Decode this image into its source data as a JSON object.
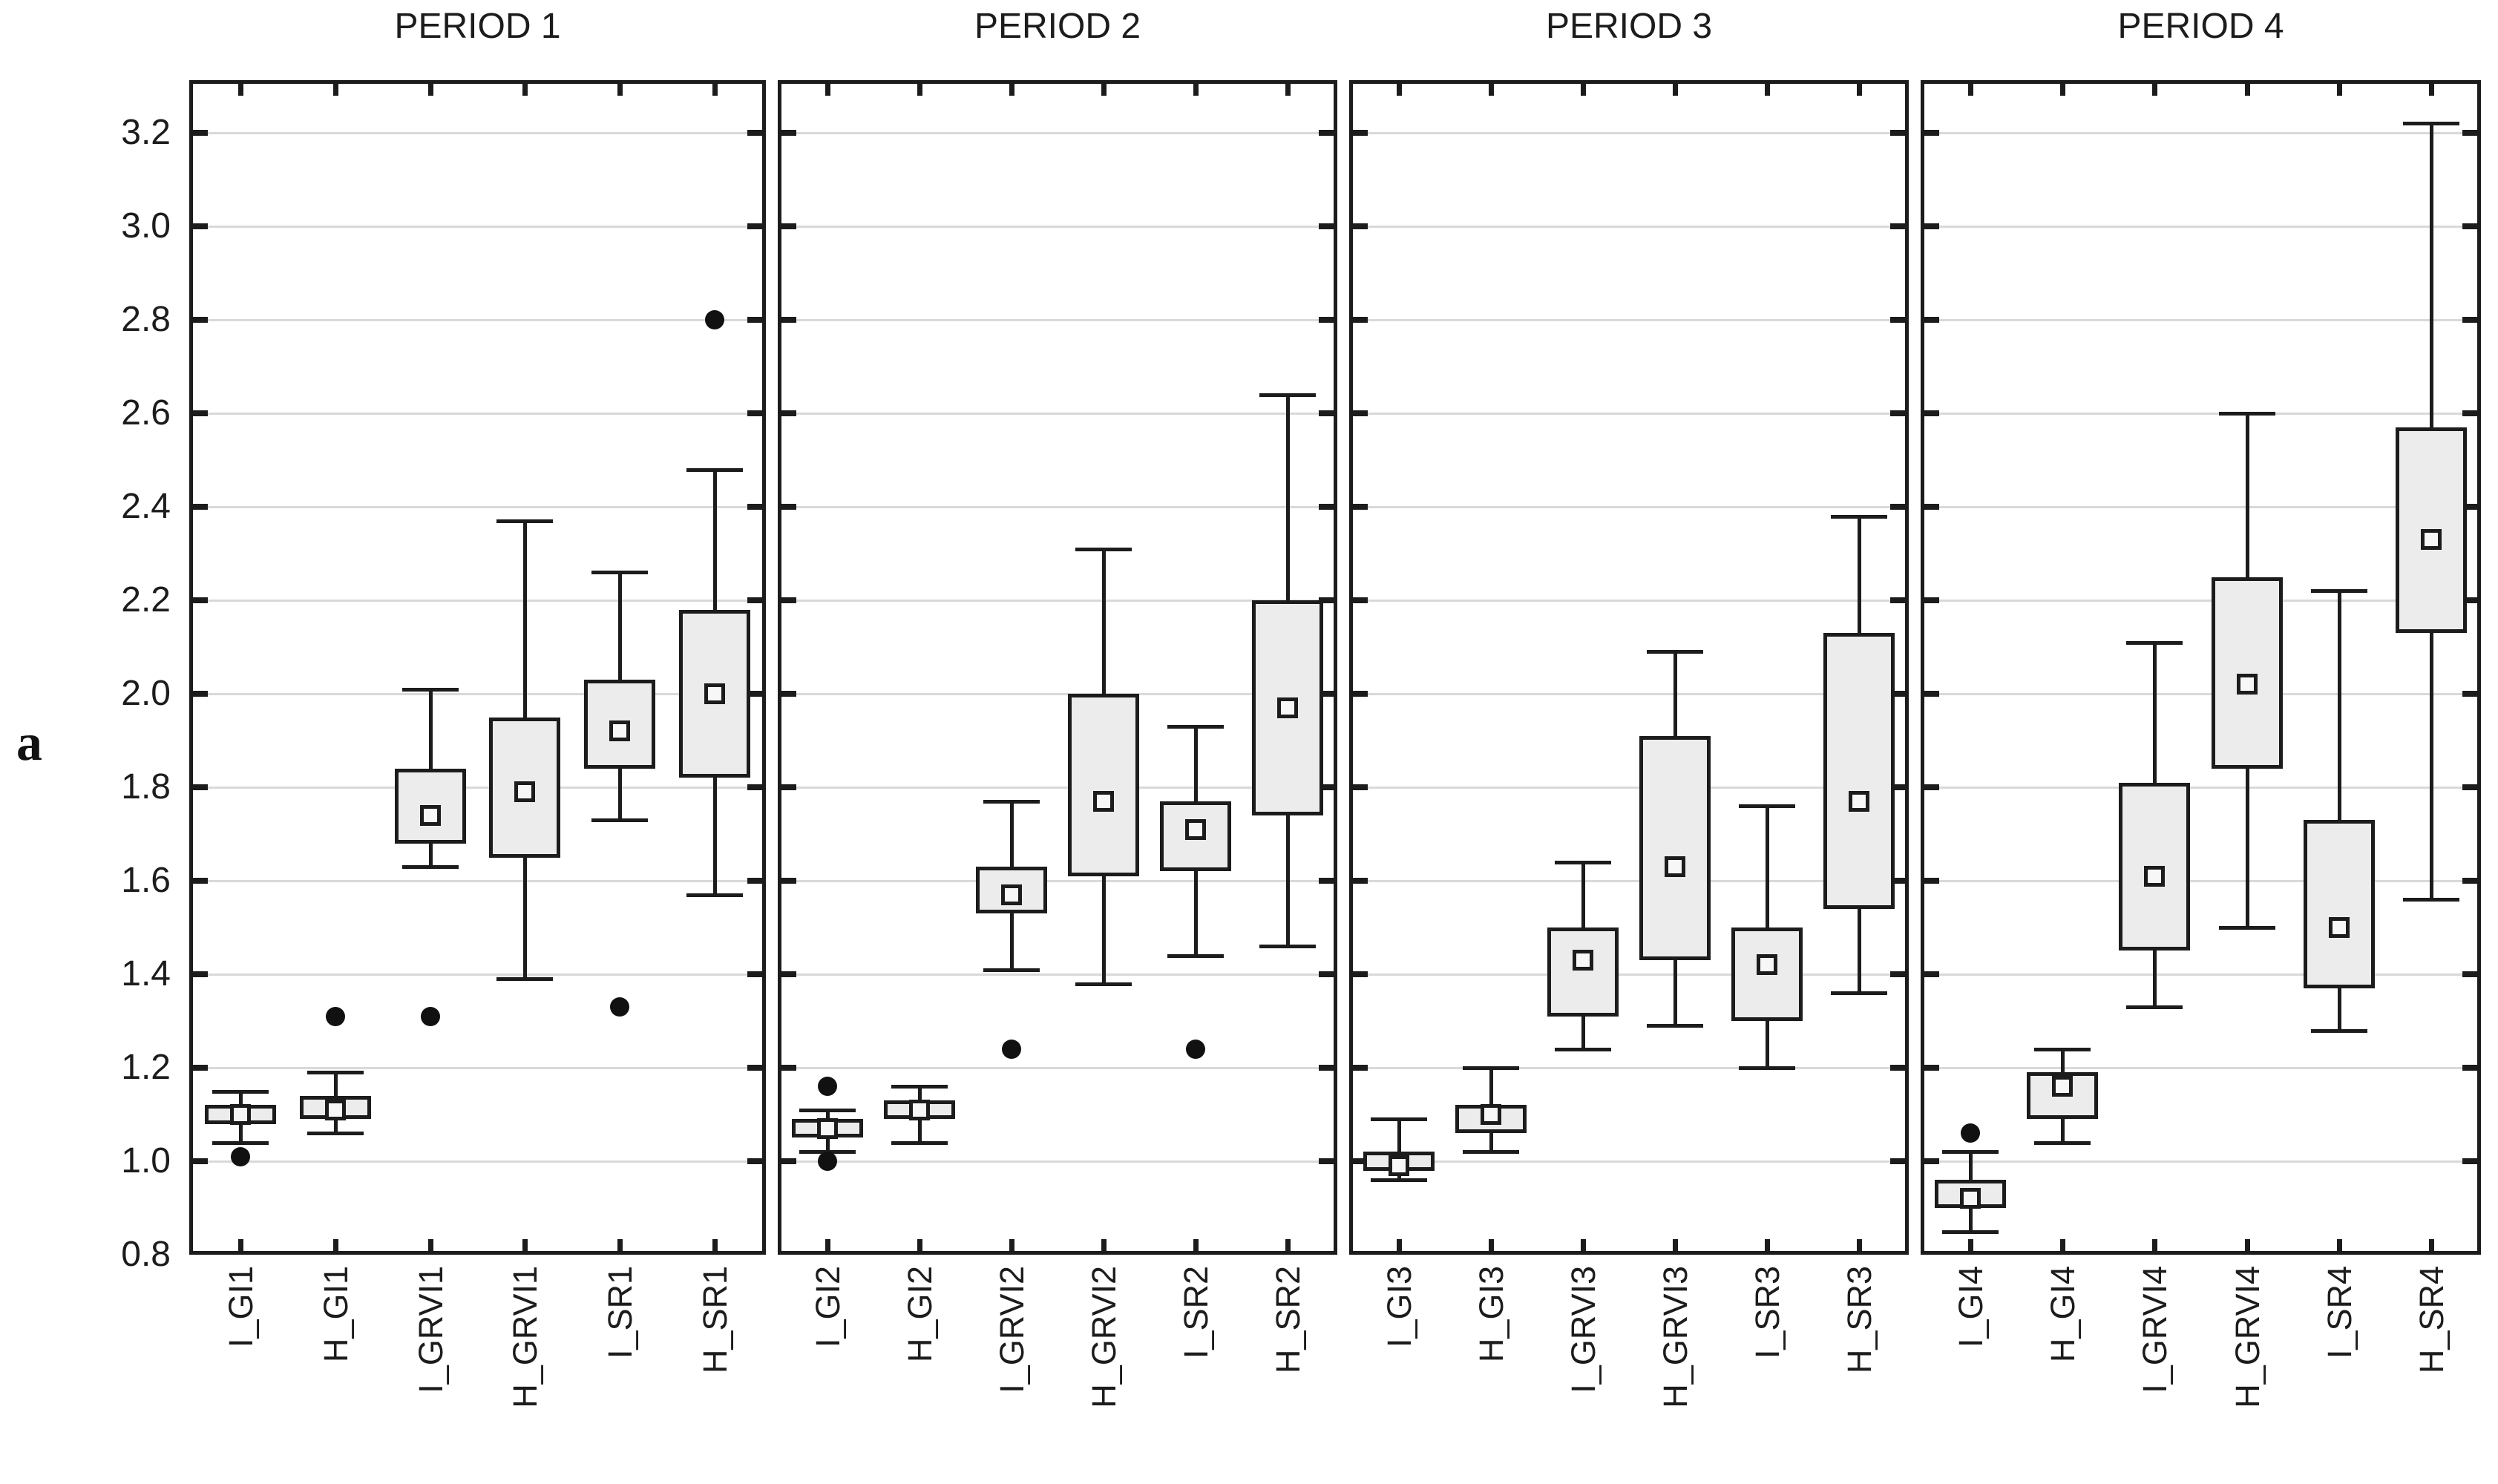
{
  "figure_label": "a",
  "colors": {
    "frame": "#1c1c1c",
    "box_fill": "#ececec",
    "median_fill": "#f7f7f7",
    "gridline": "#d9d9d9",
    "outlier": "#111111",
    "background": "#ffffff"
  },
  "chart_data": {
    "type": "boxplot",
    "description": "Four-panel box-and-whisker plot; square marker = median, box = 25-75%, whiskers = non-outlier range, dots = outliers",
    "ylim": [
      0.8,
      3.32
    ],
    "yticks": [
      0.8,
      1.0,
      1.2,
      1.4,
      1.6,
      1.8,
      2.0,
      2.2,
      2.4,
      2.6,
      2.8,
      3.0,
      3.2
    ],
    "grid": true,
    "panels": [
      {
        "title": "PERIOD 1",
        "categories": [
          "I_GI1",
          "H_GI1",
          "I_GRVI1",
          "H_GRVI1",
          "I_SR1",
          "H_SR1"
        ],
        "boxes": [
          {
            "label": "I_GI1",
            "whisker_low": 1.04,
            "q1": 1.08,
            "median": 1.1,
            "q3": 1.12,
            "whisker_high": 1.15,
            "outliers": [
              1.01
            ]
          },
          {
            "label": "H_GI1",
            "whisker_low": 1.06,
            "q1": 1.09,
            "median": 1.11,
            "q3": 1.14,
            "whisker_high": 1.19,
            "outliers": [
              1.31
            ]
          },
          {
            "label": "I_GRVI1",
            "whisker_low": 1.63,
            "q1": 1.68,
            "median": 1.74,
            "q3": 1.84,
            "whisker_high": 2.01,
            "outliers": [
              1.31
            ]
          },
          {
            "label": "H_GRVI1",
            "whisker_low": 1.39,
            "q1": 1.65,
            "median": 1.79,
            "q3": 1.95,
            "whisker_high": 2.37,
            "outliers": []
          },
          {
            "label": "I_SR1",
            "whisker_low": 1.73,
            "q1": 1.84,
            "median": 1.92,
            "q3": 2.03,
            "whisker_high": 2.26,
            "outliers": [
              1.33
            ]
          },
          {
            "label": "H_SR1",
            "whisker_low": 1.57,
            "q1": 1.82,
            "median": 2.0,
            "q3": 2.18,
            "whisker_high": 2.48,
            "outliers": [
              2.8
            ]
          }
        ]
      },
      {
        "title": "PERIOD 2",
        "categories": [
          "I_GI2",
          "H_GI2",
          "I_GRVI2",
          "H_GRVI2",
          "I_SR2",
          "H_SR2"
        ],
        "boxes": [
          {
            "label": "I_GI2",
            "whisker_low": 1.02,
            "q1": 1.05,
            "median": 1.07,
            "q3": 1.09,
            "whisker_high": 1.11,
            "outliers": [
              1.16,
              1.0
            ]
          },
          {
            "label": "H_GI2",
            "whisker_low": 1.04,
            "q1": 1.09,
            "median": 1.11,
            "q3": 1.13,
            "whisker_high": 1.16,
            "outliers": []
          },
          {
            "label": "I_GRVI2",
            "whisker_low": 1.41,
            "q1": 1.53,
            "median": 1.57,
            "q3": 1.63,
            "whisker_high": 1.77,
            "outliers": [
              1.24
            ]
          },
          {
            "label": "H_GRVI2",
            "whisker_low": 1.38,
            "q1": 1.61,
            "median": 1.77,
            "q3": 2.0,
            "whisker_high": 2.31,
            "outliers": []
          },
          {
            "label": "I_SR2",
            "whisker_low": 1.44,
            "q1": 1.62,
            "median": 1.71,
            "q3": 1.77,
            "whisker_high": 1.93,
            "outliers": [
              1.24
            ]
          },
          {
            "label": "H_SR2",
            "whisker_low": 1.46,
            "q1": 1.74,
            "median": 1.97,
            "q3": 2.2,
            "whisker_high": 2.64,
            "outliers": []
          }
        ]
      },
      {
        "title": "PERIOD 3",
        "categories": [
          "I_GI3",
          "H_GI3",
          "I_GRVI3",
          "H_GRVI3",
          "I_SR3",
          "H_SR3"
        ],
        "boxes": [
          {
            "label": "I_GI3",
            "whisker_low": 0.96,
            "q1": 0.98,
            "median": 0.99,
            "q3": 1.02,
            "whisker_high": 1.09,
            "outliers": []
          },
          {
            "label": "H_GI3",
            "whisker_low": 1.02,
            "q1": 1.06,
            "median": 1.1,
            "q3": 1.12,
            "whisker_high": 1.2,
            "outliers": []
          },
          {
            "label": "I_GRVI3",
            "whisker_low": 1.24,
            "q1": 1.31,
            "median": 1.43,
            "q3": 1.5,
            "whisker_high": 1.64,
            "outliers": []
          },
          {
            "label": "H_GRVI3",
            "whisker_low": 1.29,
            "q1": 1.43,
            "median": 1.63,
            "q3": 1.91,
            "whisker_high": 2.09,
            "outliers": []
          },
          {
            "label": "I_SR3",
            "whisker_low": 1.2,
            "q1": 1.3,
            "median": 1.42,
            "q3": 1.5,
            "whisker_high": 1.76,
            "outliers": []
          },
          {
            "label": "H_SR3",
            "whisker_low": 1.36,
            "q1": 1.54,
            "median": 1.77,
            "q3": 2.13,
            "whisker_high": 2.38,
            "outliers": []
          }
        ]
      },
      {
        "title": "PERIOD 4",
        "categories": [
          "I_GI4",
          "H_GI4",
          "I_GRVI4",
          "H_GRVI4",
          "I_SR4",
          "H_SR4"
        ],
        "boxes": [
          {
            "label": "I_GI4",
            "whisker_low": 0.85,
            "q1": 0.9,
            "median": 0.92,
            "q3": 0.96,
            "whisker_high": 1.02,
            "outliers": [
              1.06
            ]
          },
          {
            "label": "H_GI4",
            "whisker_low": 1.04,
            "q1": 1.09,
            "median": 1.16,
            "q3": 1.19,
            "whisker_high": 1.24,
            "outliers": []
          },
          {
            "label": "I_GRVI4",
            "whisker_low": 1.33,
            "q1": 1.45,
            "median": 1.61,
            "q3": 1.81,
            "whisker_high": 2.11,
            "outliers": []
          },
          {
            "label": "H_GRVI4",
            "whisker_low": 1.5,
            "q1": 1.84,
            "median": 2.02,
            "q3": 2.25,
            "whisker_high": 2.6,
            "outliers": []
          },
          {
            "label": "I_SR4",
            "whisker_low": 1.28,
            "q1": 1.37,
            "median": 1.5,
            "q3": 1.73,
            "whisker_high": 2.22,
            "outliers": []
          },
          {
            "label": "H_SR4",
            "whisker_low": 1.56,
            "q1": 2.13,
            "median": 2.33,
            "q3": 2.57,
            "whisker_high": 3.22,
            "outliers": []
          }
        ]
      }
    ]
  }
}
